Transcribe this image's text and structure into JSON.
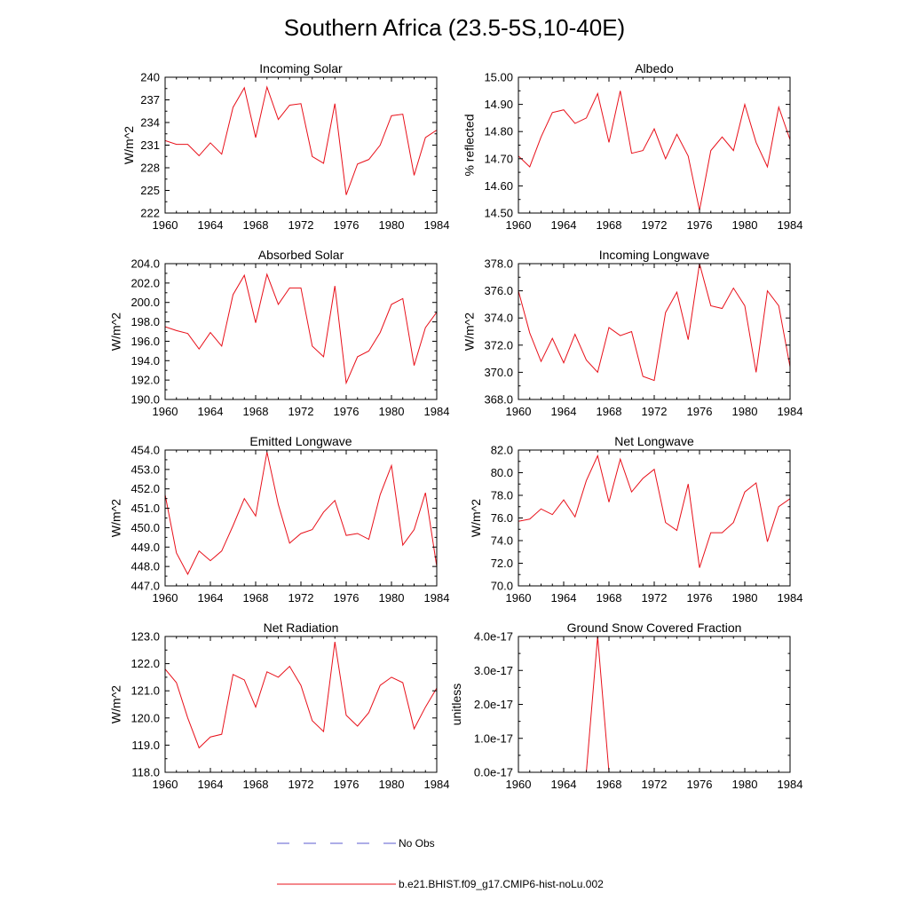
{
  "figure": {
    "title": "Southern Africa (23.5-5S,10-40E)"
  },
  "colors": {
    "model_line": "#e8101a",
    "obs_line": "#5b5bcf",
    "axes": "#000000"
  },
  "legend": {
    "placement": "bottom-center",
    "entries": [
      {
        "name": "No Obs",
        "style": "dashed",
        "color": "#5b5bcf"
      },
      {
        "name": "b.e21.BHIST.f09_g17.CMIP6-hist-noLu.002",
        "style": "solid",
        "color": "#e8101a"
      }
    ]
  },
  "chart_data": [
    {
      "type": "line",
      "title": "Incoming Solar",
      "ylabel": "W/m^2",
      "xlim": [
        1960,
        1984
      ],
      "ylim": [
        222,
        240
      ],
      "xticks": [
        1960,
        1964,
        1968,
        1972,
        1976,
        1980,
        1984
      ],
      "xtick_labels": [
        "1960",
        "1964",
        "1968",
        "1972",
        "1976",
        "1980",
        "1984"
      ],
      "yticks": [
        222,
        225,
        228,
        231,
        234,
        237,
        240
      ],
      "ytick_labels": [
        "222",
        "225",
        "228",
        "231",
        "234",
        "237",
        "240"
      ],
      "x": [
        1960,
        1961,
        1962,
        1963,
        1964,
        1965,
        1966,
        1967,
        1968,
        1969,
        1970,
        1971,
        1972,
        1973,
        1974,
        1975,
        1976,
        1977,
        1978,
        1979,
        1980,
        1981,
        1982,
        1983,
        1984
      ],
      "series": [
        {
          "name": "b.e21.BHIST.f09_g17.CMIP6-hist-noLu.002",
          "values": [
            231.6,
            231.1,
            231.1,
            229.6,
            231.3,
            229.8,
            236.0,
            238.6,
            232.0,
            238.7,
            234.4,
            236.3,
            236.5,
            229.5,
            228.6,
            236.5,
            224.4,
            228.5,
            229.1,
            231.0,
            234.9,
            235.1,
            227.0,
            232.0,
            233.0
          ]
        }
      ]
    },
    {
      "type": "line",
      "title": "Albedo",
      "ylabel": "% reflected",
      "xlim": [
        1960,
        1984
      ],
      "ylim": [
        14.5,
        15.0
      ],
      "xticks": [
        1960,
        1964,
        1968,
        1972,
        1976,
        1980,
        1984
      ],
      "xtick_labels": [
        "1960",
        "1964",
        "1968",
        "1972",
        "1976",
        "1980",
        "1984"
      ],
      "yticks": [
        14.5,
        14.6,
        14.7,
        14.8,
        14.9,
        15.0
      ],
      "ytick_labels": [
        "14.50",
        "14.60",
        "14.70",
        "14.80",
        "14.90",
        "15.00"
      ],
      "x": [
        1960,
        1961,
        1962,
        1963,
        1964,
        1965,
        1966,
        1967,
        1968,
        1969,
        1970,
        1971,
        1972,
        1973,
        1974,
        1975,
        1976,
        1977,
        1978,
        1979,
        1980,
        1981,
        1982,
        1983,
        1984
      ],
      "series": [
        {
          "name": "b.e21.BHIST.f09_g17.CMIP6-hist-noLu.002",
          "values": [
            14.71,
            14.67,
            14.78,
            14.87,
            14.88,
            14.83,
            14.85,
            14.94,
            14.76,
            14.95,
            14.72,
            14.73,
            14.81,
            14.7,
            14.79,
            14.71,
            14.51,
            14.73,
            14.78,
            14.73,
            14.9,
            14.76,
            14.67,
            14.89,
            14.77
          ]
        }
      ]
    },
    {
      "type": "line",
      "title": "Absorbed Solar",
      "ylabel": "W/m^2",
      "xlim": [
        1960,
        1984
      ],
      "ylim": [
        190,
        204
      ],
      "xticks": [
        1960,
        1964,
        1968,
        1972,
        1976,
        1980,
        1984
      ],
      "xtick_labels": [
        "1960",
        "1964",
        "1968",
        "1972",
        "1976",
        "1980",
        "1984"
      ],
      "yticks": [
        190,
        192,
        194,
        196,
        198,
        200,
        202,
        204
      ],
      "ytick_labels": [
        "190.0",
        "192.0",
        "194.0",
        "196.0",
        "198.0",
        "200.0",
        "202.0",
        "204.0"
      ],
      "x": [
        1960,
        1961,
        1962,
        1963,
        1964,
        1965,
        1966,
        1967,
        1968,
        1969,
        1970,
        1971,
        1972,
        1973,
        1974,
        1975,
        1976,
        1977,
        1978,
        1979,
        1980,
        1981,
        1982,
        1983,
        1984
      ],
      "series": [
        {
          "name": "b.e21.BHIST.f09_g17.CMIP6-hist-noLu.002",
          "values": [
            197.5,
            197.1,
            196.8,
            195.2,
            196.9,
            195.5,
            200.8,
            202.8,
            197.9,
            202.9,
            199.8,
            201.5,
            201.5,
            195.5,
            194.4,
            201.7,
            191.7,
            194.4,
            195.0,
            196.9,
            199.8,
            200.4,
            193.5,
            197.4,
            199.0
          ]
        }
      ]
    },
    {
      "type": "line",
      "title": "Incoming Longwave",
      "ylabel": "W/m^2",
      "xlim": [
        1960,
        1984
      ],
      "ylim": [
        368,
        378
      ],
      "xticks": [
        1960,
        1964,
        1968,
        1972,
        1976,
        1980,
        1984
      ],
      "xtick_labels": [
        "1960",
        "1964",
        "1968",
        "1972",
        "1976",
        "1980",
        "1984"
      ],
      "yticks": [
        368,
        370,
        372,
        374,
        376,
        378
      ],
      "ytick_labels": [
        "368.0",
        "370.0",
        "372.0",
        "374.0",
        "376.0",
        "378.0"
      ],
      "x": [
        1960,
        1961,
        1962,
        1963,
        1964,
        1965,
        1966,
        1967,
        1968,
        1969,
        1970,
        1971,
        1972,
        1973,
        1974,
        1975,
        1976,
        1977,
        1978,
        1979,
        1980,
        1981,
        1982,
        1983,
        1984
      ],
      "series": [
        {
          "name": "b.e21.BHIST.f09_g17.CMIP6-hist-noLu.002",
          "values": [
            376.0,
            372.9,
            370.8,
            372.5,
            370.7,
            372.8,
            370.9,
            370.0,
            373.3,
            372.7,
            373.0,
            369.7,
            369.4,
            374.4,
            375.9,
            372.4,
            378.0,
            374.9,
            374.7,
            376.2,
            374.9,
            370.0,
            376.0,
            374.9,
            370.4
          ]
        }
      ]
    },
    {
      "type": "line",
      "title": "Emitted Longwave",
      "ylabel": "W/m^2",
      "xlim": [
        1960,
        1984
      ],
      "ylim": [
        447,
        454
      ],
      "xticks": [
        1960,
        1964,
        1968,
        1972,
        1976,
        1980,
        1984
      ],
      "xtick_labels": [
        "1960",
        "1964",
        "1968",
        "1972",
        "1976",
        "1980",
        "1984"
      ],
      "yticks": [
        447,
        448,
        449,
        450,
        451,
        452,
        453,
        454
      ],
      "ytick_labels": [
        "447.0",
        "448.0",
        "449.0",
        "450.0",
        "451.0",
        "452.0",
        "453.0",
        "454.0"
      ],
      "x": [
        1960,
        1961,
        1962,
        1963,
        1964,
        1965,
        1966,
        1967,
        1968,
        1969,
        1970,
        1971,
        1972,
        1973,
        1974,
        1975,
        1976,
        1977,
        1978,
        1979,
        1980,
        1981,
        1982,
        1983,
        1984
      ],
      "series": [
        {
          "name": "b.e21.BHIST.f09_g17.CMIP6-hist-noLu.002",
          "values": [
            451.7,
            448.7,
            447.6,
            448.8,
            448.3,
            448.8,
            450.1,
            451.5,
            450.6,
            453.9,
            451.2,
            449.2,
            449.7,
            449.9,
            450.8,
            451.4,
            449.6,
            449.7,
            449.4,
            451.7,
            453.2,
            449.1,
            449.9,
            451.8,
            448.0
          ]
        }
      ]
    },
    {
      "type": "line",
      "title": "Net Longwave",
      "ylabel": "W/m^2",
      "xlim": [
        1960,
        1984
      ],
      "ylim": [
        70,
        82
      ],
      "xticks": [
        1960,
        1964,
        1968,
        1972,
        1976,
        1980,
        1984
      ],
      "xtick_labels": [
        "1960",
        "1964",
        "1968",
        "1972",
        "1976",
        "1980",
        "1984"
      ],
      "yticks": [
        70,
        72,
        74,
        76,
        78,
        80,
        82
      ],
      "ytick_labels": [
        "70.0",
        "72.0",
        "74.0",
        "76.0",
        "78.0",
        "80.0",
        "82.0"
      ],
      "x": [
        1960,
        1961,
        1962,
        1963,
        1964,
        1965,
        1966,
        1967,
        1968,
        1969,
        1970,
        1971,
        1972,
        1973,
        1974,
        1975,
        1976,
        1977,
        1978,
        1979,
        1980,
        1981,
        1982,
        1983,
        1984
      ],
      "series": [
        {
          "name": "b.e21.BHIST.f09_g17.CMIP6-hist-noLu.002",
          "values": [
            75.7,
            75.9,
            76.8,
            76.3,
            77.6,
            76.1,
            79.3,
            81.5,
            77.4,
            81.2,
            78.3,
            79.5,
            80.3,
            75.6,
            74.9,
            79.0,
            71.6,
            74.7,
            74.7,
            75.6,
            78.3,
            79.1,
            73.9,
            77.0,
            77.7
          ]
        }
      ]
    },
    {
      "type": "line",
      "title": "Net Radiation",
      "ylabel": "W/m^2",
      "xlim": [
        1960,
        1984
      ],
      "ylim": [
        118,
        123
      ],
      "xticks": [
        1960,
        1964,
        1968,
        1972,
        1976,
        1980,
        1984
      ],
      "xtick_labels": [
        "1960",
        "1964",
        "1968",
        "1972",
        "1976",
        "1980",
        "1984"
      ],
      "yticks": [
        118,
        119,
        120,
        121,
        122,
        123
      ],
      "ytick_labels": [
        "118.0",
        "119.0",
        "120.0",
        "121.0",
        "122.0",
        "123.0"
      ],
      "x": [
        1960,
        1961,
        1962,
        1963,
        1964,
        1965,
        1966,
        1967,
        1968,
        1969,
        1970,
        1971,
        1972,
        1973,
        1974,
        1975,
        1976,
        1977,
        1978,
        1979,
        1980,
        1981,
        1982,
        1983,
        1984
      ],
      "series": [
        {
          "name": "b.e21.BHIST.f09_g17.CMIP6-hist-noLu.002",
          "values": [
            121.8,
            121.3,
            120.0,
            118.9,
            119.3,
            119.4,
            121.6,
            121.4,
            120.4,
            121.7,
            121.5,
            121.9,
            121.2,
            119.9,
            119.5,
            122.8,
            120.1,
            119.7,
            120.2,
            121.2,
            121.5,
            121.3,
            119.6,
            120.4,
            121.1
          ]
        }
      ]
    },
    {
      "type": "line",
      "title": "Ground Snow Covered Fraction",
      "ylabel": "unitless",
      "xlim": [
        1960,
        1984
      ],
      "ylim": [
        0,
        4e-17
      ],
      "xticks": [
        1960,
        1964,
        1968,
        1972,
        1976,
        1980,
        1984
      ],
      "xtick_labels": [
        "1960",
        "1964",
        "1968",
        "1972",
        "1976",
        "1980",
        "1984"
      ],
      "yticks": [
        0,
        1e-17,
        2e-17,
        3e-17,
        4e-17
      ],
      "ytick_labels": [
        "0.0e-17",
        "1.0e-17",
        "2.0e-17",
        "3.0e-17",
        "4.0e-17"
      ],
      "x": [
        1960,
        1961,
        1962,
        1963,
        1964,
        1965,
        1966,
        1967,
        1968,
        1969,
        1970,
        1971,
        1972,
        1973,
        1974,
        1975,
        1976,
        1977,
        1978,
        1979,
        1980,
        1981,
        1982,
        1983,
        1984
      ],
      "series": [
        {
          "name": "b.e21.BHIST.f09_g17.CMIP6-hist-noLu.002",
          "values": [
            0,
            0,
            0,
            0,
            0,
            0,
            0,
            4e-17,
            0,
            0,
            0,
            0,
            0,
            0,
            0,
            0,
            0,
            0,
            0,
            0,
            0,
            0,
            0,
            0,
            0
          ]
        }
      ]
    }
  ]
}
